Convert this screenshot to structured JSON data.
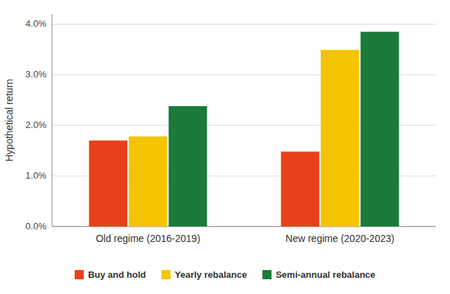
{
  "chart_data": {
    "type": "bar",
    "categories": [
      "Old regime (2016-2019)",
      "New regime (2020-2023)"
    ],
    "series": [
      {
        "name": "Buy and hold",
        "color": "#E8401C",
        "values": [
          0.017,
          0.0148
        ]
      },
      {
        "name": "Yearly rebalance",
        "color": "#F5C400",
        "values": [
          0.0178,
          0.0349
        ]
      },
      {
        "name": "Semi-annual rebalance",
        "color": "#1B7B3A",
        "values": [
          0.0238,
          0.0385
        ]
      }
    ],
    "ylabel": "Hypothetical return",
    "ylim": [
      0.0,
      0.042
    ],
    "yticks": [
      {
        "value": 0.0,
        "label": "0.0%"
      },
      {
        "value": 0.01,
        "label": "1.0%"
      },
      {
        "value": 0.02,
        "label": "2.0%"
      },
      {
        "value": 0.03,
        "label": "3.0%"
      },
      {
        "value": 0.04,
        "label": "4.0%"
      }
    ],
    "grid": true,
    "legend": "bottom"
  }
}
